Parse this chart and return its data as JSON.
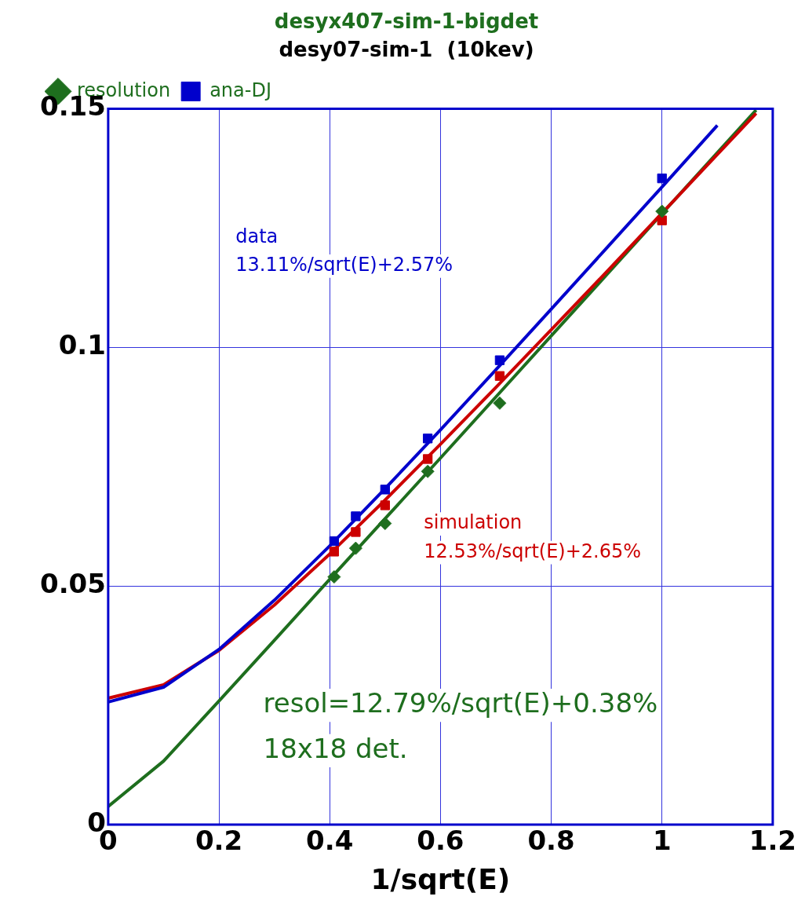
{
  "chart_data": {
    "type": "scatter",
    "title": "desyx407-sim-1-bigdet",
    "subtitle": "desy07-sim-1  (10kev)",
    "xlabel": "1/sqrt(E)",
    "xlim": [
      0,
      1.2
    ],
    "xticks": [
      0,
      0.2,
      0.4,
      0.6,
      0.8,
      1,
      1.2
    ],
    "ylim": [
      0,
      0.15
    ],
    "yticks": [
      0,
      0.05,
      0.1,
      0.15
    ],
    "grid": true,
    "legend": "top left",
    "annotations": [
      "data",
      "13.11%/sqrt(E)+2.57%",
      "simulation",
      "12.53%/sqrt(E)+2.65%",
      "resol=12.79%/sqrt(E)+0.38%",
      "18x18 det."
    ],
    "series": [
      {
        "name": "resolution",
        "marker": "diamond",
        "color": "#1e6e1e",
        "x": [
          0.408,
          0.447,
          0.5,
          0.577,
          0.707,
          1
        ],
        "values": [
          0.0519,
          0.0579,
          0.0631,
          0.074,
          0.0883,
          0.1285
        ]
      },
      {
        "name": "ana-DJ",
        "marker": "square",
        "color": "#0000cc",
        "x": [
          0.408,
          0.447,
          0.5,
          0.577,
          0.707,
          1
        ],
        "values": [
          0.0594,
          0.0646,
          0.0702,
          0.0809,
          0.0973,
          0.1354
        ]
      },
      {
        "marker": "square",
        "color": "#cc0000",
        "x": [
          0.408,
          0.447,
          0.5,
          0.577,
          0.707,
          1
        ],
        "values": [
          0.0572,
          0.0613,
          0.0669,
          0.0766,
          0.094,
          0.1266
        ]
      },
      {
        "type": "line",
        "marker": "none",
        "color": "#0000cc",
        "x": [
          0,
          0.1,
          0.2,
          0.3,
          0.4,
          0.5,
          0.6,
          0.7,
          0.8,
          0.9,
          1,
          1.1
        ],
        "values": [
          0.0257,
          0.0288,
          0.0367,
          0.047,
          0.0584,
          0.0704,
          0.0827,
          0.0953,
          0.108,
          0.1208,
          0.1336,
          0.1465
        ]
      },
      {
        "type": "line",
        "marker": "none",
        "color": "#cc0000",
        "x": [
          0,
          0.1,
          0.2,
          0.3,
          0.4,
          0.5,
          0.6,
          0.7,
          0.8,
          0.9,
          1,
          1.1,
          1.17
        ],
        "values": [
          0.0265,
          0.0293,
          0.0365,
          0.046,
          0.0567,
          0.068,
          0.0797,
          0.0916,
          0.1037,
          0.1158,
          0.1281,
          0.1404,
          0.149
        ]
      },
      {
        "type": "line",
        "marker": "none",
        "color": "#1e6e1e",
        "x": [
          0,
          0.1,
          0.2,
          0.3,
          0.4,
          0.5,
          0.6,
          0.7,
          0.8,
          0.9,
          1,
          1.1,
          1.17
        ],
        "values": [
          0.0038,
          0.0133,
          0.0259,
          0.0386,
          0.0514,
          0.0641,
          0.0768,
          0.0896,
          0.1024,
          0.1152,
          0.128,
          0.1408,
          0.1497
        ]
      }
    ]
  }
}
